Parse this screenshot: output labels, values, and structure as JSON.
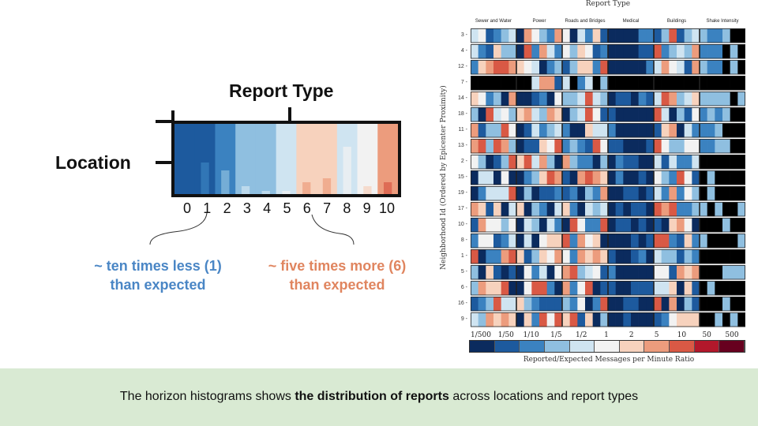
{
  "legend": {
    "title": "Report Type",
    "location_label": "Location",
    "axis": [
      "0",
      "1",
      "2",
      "3",
      "4",
      "5",
      "6",
      "7",
      "8",
      "9",
      "10"
    ],
    "note_less": "~ ten times less (1) than expected",
    "note_more": "~ five times more (6) than expected"
  },
  "footer": {
    "prefix": "The horizon histograms shows ",
    "bold": "the distribution of reports",
    "suffix": " across locations and report types"
  },
  "panel": {
    "title": "Report Type",
    "categories": [
      "Sewer and Water",
      "Power",
      "Roads and Bridges",
      "Medical",
      "Buildings",
      "Shake Intensity"
    ],
    "y_axis_title": "Neighborhood Id (Ordered by Epicenter Proximity)",
    "rows": [
      "3",
      "4",
      "12",
      "7",
      "14",
      "18",
      "11",
      "13",
      "2",
      "15",
      "19",
      "17",
      "10",
      "8",
      "1",
      "5",
      "6",
      "16",
      "9"
    ],
    "scale_labels": [
      "1/500",
      "1/50",
      "1/10",
      "1/5",
      "1/2",
      "1",
      "2",
      "5",
      "10",
      "50",
      "500"
    ],
    "scale_title": "Reported/Expected Messages per Minute Ratio"
  },
  "colors": {
    "scale": [
      "#0b2b5e",
      "#1d5a9e",
      "#3b82c0",
      "#8fbfe0",
      "#cfe4f1",
      "#f2f2f2",
      "#f7d2bd",
      "#ec9c7d",
      "#d95945",
      "#b2182b",
      "#67001f"
    ],
    "accent_blue": "#4a86c5",
    "accent_orange": "#e0855f",
    "footer_bg": "#d9ead3"
  }
}
